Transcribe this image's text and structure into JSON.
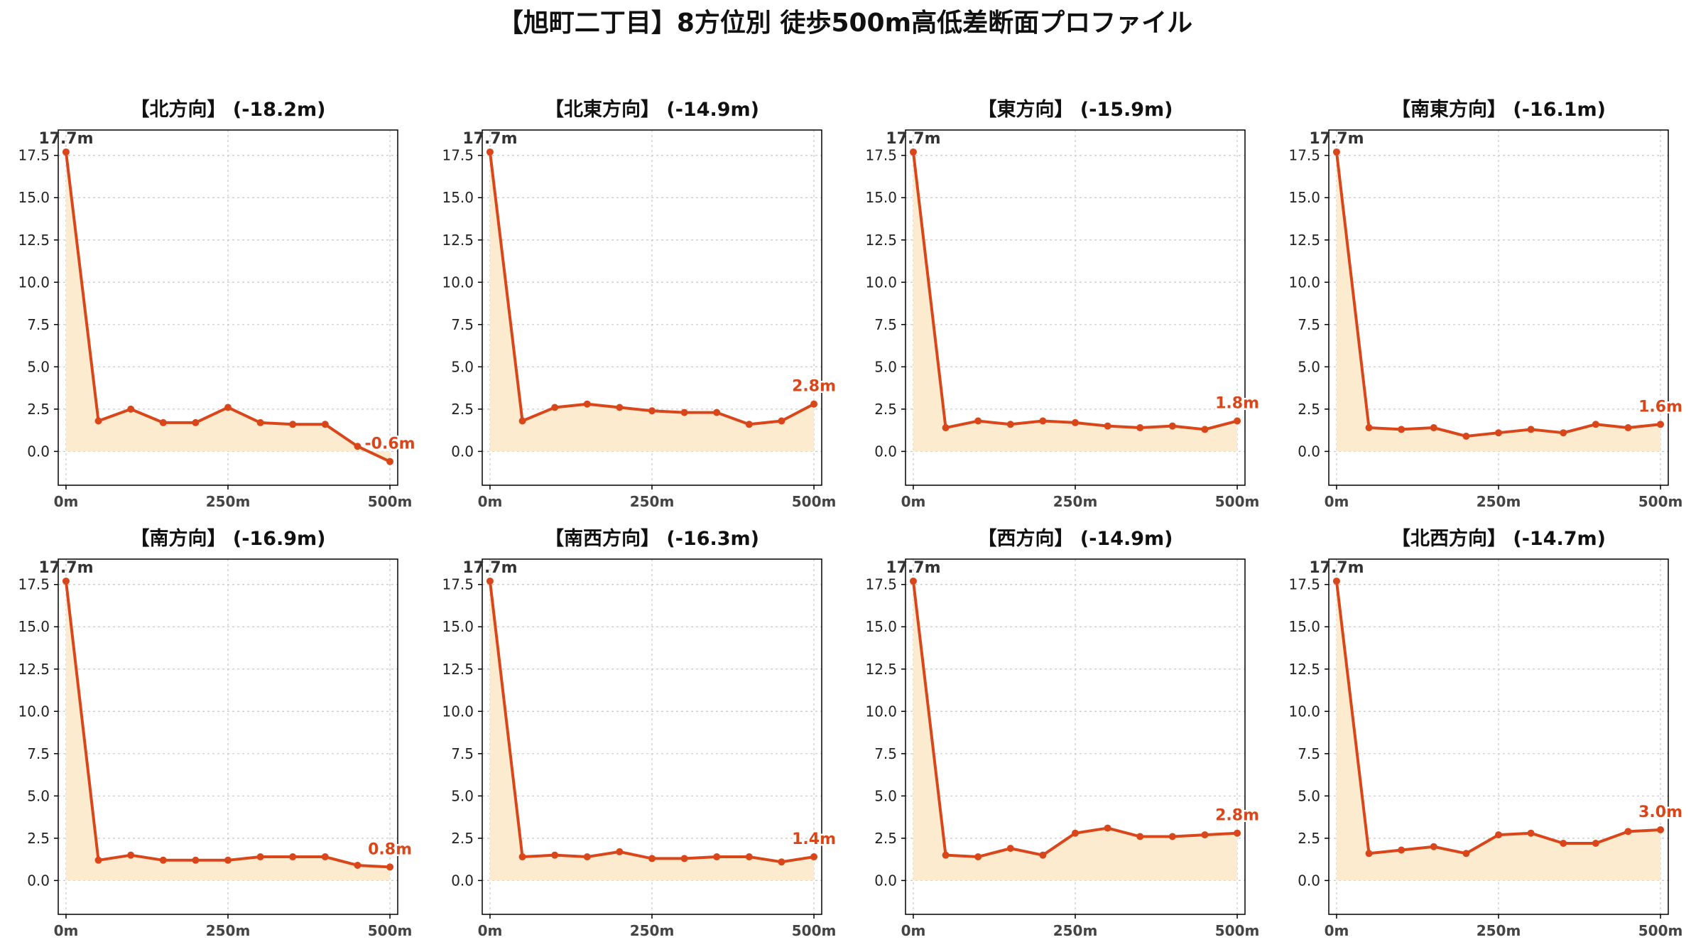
{
  "suptitle": "【旭町二丁目】8方位別 徒歩500m高低差断面プロファイル",
  "colors": {
    "line": "#d9461a",
    "fill": "#fdebd0",
    "start_label": "#333333",
    "end_label": "#d9461a",
    "grid": "#c8c8c8",
    "axis": "#000000"
  },
  "chart_data": [
    {
      "type": "area",
      "title": "【北方向】 (-18.2m)",
      "xlabel": "",
      "ylabel": "",
      "x": [
        0,
        50,
        100,
        150,
        200,
        250,
        300,
        350,
        400,
        450,
        500
      ],
      "y": [
        17.7,
        1.8,
        2.5,
        1.7,
        1.7,
        2.6,
        1.7,
        1.6,
        1.6,
        0.3,
        -0.6
      ],
      "start_label": "17.7m",
      "end_label": "-0.6m",
      "xticks": [
        "0m",
        "250m",
        "500m"
      ],
      "yticks": [
        "0.0",
        "2.5",
        "5.0",
        "7.5",
        "10.0",
        "12.5",
        "15.0",
        "17.5"
      ],
      "xlim": [
        -12,
        512
      ],
      "ylim": [
        -2,
        19
      ],
      "grid": true
    },
    {
      "type": "area",
      "title": "【北東方向】 (-14.9m)",
      "xlabel": "",
      "ylabel": "",
      "x": [
        0,
        50,
        100,
        150,
        200,
        250,
        300,
        350,
        400,
        450,
        500
      ],
      "y": [
        17.7,
        1.8,
        2.6,
        2.8,
        2.6,
        2.4,
        2.3,
        2.3,
        1.6,
        1.8,
        2.8
      ],
      "start_label": "17.7m",
      "end_label": "2.8m",
      "xticks": [
        "0m",
        "250m",
        "500m"
      ],
      "yticks": [
        "0.0",
        "2.5",
        "5.0",
        "7.5",
        "10.0",
        "12.5",
        "15.0",
        "17.5"
      ],
      "xlim": [
        -12,
        512
      ],
      "ylim": [
        -2,
        19
      ],
      "grid": true
    },
    {
      "type": "area",
      "title": "【東方向】 (-15.9m)",
      "xlabel": "",
      "ylabel": "",
      "x": [
        0,
        50,
        100,
        150,
        200,
        250,
        300,
        350,
        400,
        450,
        500
      ],
      "y": [
        17.7,
        1.4,
        1.8,
        1.6,
        1.8,
        1.7,
        1.5,
        1.4,
        1.5,
        1.3,
        1.8
      ],
      "start_label": "17.7m",
      "end_label": "1.8m",
      "xticks": [
        "0m",
        "250m",
        "500m"
      ],
      "yticks": [
        "0.0",
        "2.5",
        "5.0",
        "7.5",
        "10.0",
        "12.5",
        "15.0",
        "17.5"
      ],
      "xlim": [
        -12,
        512
      ],
      "ylim": [
        -2,
        19
      ],
      "grid": true
    },
    {
      "type": "area",
      "title": "【南東方向】 (-16.1m)",
      "xlabel": "",
      "ylabel": "",
      "x": [
        0,
        50,
        100,
        150,
        200,
        250,
        300,
        350,
        400,
        450,
        500
      ],
      "y": [
        17.7,
        1.4,
        1.3,
        1.4,
        0.9,
        1.1,
        1.3,
        1.1,
        1.6,
        1.4,
        1.6
      ],
      "start_label": "17.7m",
      "end_label": "1.6m",
      "xticks": [
        "0m",
        "250m",
        "500m"
      ],
      "yticks": [
        "0.0",
        "2.5",
        "5.0",
        "7.5",
        "10.0",
        "12.5",
        "15.0",
        "17.5"
      ],
      "xlim": [
        -12,
        512
      ],
      "ylim": [
        -2,
        19
      ],
      "grid": true
    },
    {
      "type": "area",
      "title": "【南方向】 (-16.9m)",
      "xlabel": "",
      "ylabel": "",
      "x": [
        0,
        50,
        100,
        150,
        200,
        250,
        300,
        350,
        400,
        450,
        500
      ],
      "y": [
        17.7,
        1.2,
        1.5,
        1.2,
        1.2,
        1.2,
        1.4,
        1.4,
        1.4,
        0.9,
        0.8
      ],
      "start_label": "17.7m",
      "end_label": "0.8m",
      "xticks": [
        "0m",
        "250m",
        "500m"
      ],
      "yticks": [
        "0.0",
        "2.5",
        "5.0",
        "7.5",
        "10.0",
        "12.5",
        "15.0",
        "17.5"
      ],
      "xlim": [
        -12,
        512
      ],
      "ylim": [
        -2,
        19
      ],
      "grid": true
    },
    {
      "type": "area",
      "title": "【南西方向】 (-16.3m)",
      "xlabel": "",
      "ylabel": "",
      "x": [
        0,
        50,
        100,
        150,
        200,
        250,
        300,
        350,
        400,
        450,
        500
      ],
      "y": [
        17.7,
        1.4,
        1.5,
        1.4,
        1.7,
        1.3,
        1.3,
        1.4,
        1.4,
        1.1,
        1.4
      ],
      "start_label": "17.7m",
      "end_label": "1.4m",
      "xticks": [
        "0m",
        "250m",
        "500m"
      ],
      "yticks": [
        "0.0",
        "2.5",
        "5.0",
        "7.5",
        "10.0",
        "12.5",
        "15.0",
        "17.5"
      ],
      "xlim": [
        -12,
        512
      ],
      "ylim": [
        -2,
        19
      ],
      "grid": true
    },
    {
      "type": "area",
      "title": "【西方向】 (-14.9m)",
      "xlabel": "",
      "ylabel": "",
      "x": [
        0,
        50,
        100,
        150,
        200,
        250,
        300,
        350,
        400,
        450,
        500
      ],
      "y": [
        17.7,
        1.5,
        1.4,
        1.9,
        1.5,
        2.8,
        3.1,
        2.6,
        2.6,
        2.7,
        2.8
      ],
      "start_label": "17.7m",
      "end_label": "2.8m",
      "xticks": [
        "0m",
        "250m",
        "500m"
      ],
      "yticks": [
        "0.0",
        "2.5",
        "5.0",
        "7.5",
        "10.0",
        "12.5",
        "15.0",
        "17.5"
      ],
      "xlim": [
        -12,
        512
      ],
      "ylim": [
        -2,
        19
      ],
      "grid": true
    },
    {
      "type": "area",
      "title": "【北西方向】 (-14.7m)",
      "xlabel": "",
      "ylabel": "",
      "x": [
        0,
        50,
        100,
        150,
        200,
        250,
        300,
        350,
        400,
        450,
        500
      ],
      "y": [
        17.7,
        1.6,
        1.8,
        2.0,
        1.6,
        2.7,
        2.8,
        2.2,
        2.2,
        2.9,
        3.0
      ],
      "start_label": "17.7m",
      "end_label": "3.0m",
      "xticks": [
        "0m",
        "250m",
        "500m"
      ],
      "yticks": [
        "0.0",
        "2.5",
        "5.0",
        "7.5",
        "10.0",
        "12.5",
        "15.0",
        "17.5"
      ],
      "xlim": [
        -12,
        512
      ],
      "ylim": [
        -2,
        19
      ],
      "grid": true
    }
  ]
}
